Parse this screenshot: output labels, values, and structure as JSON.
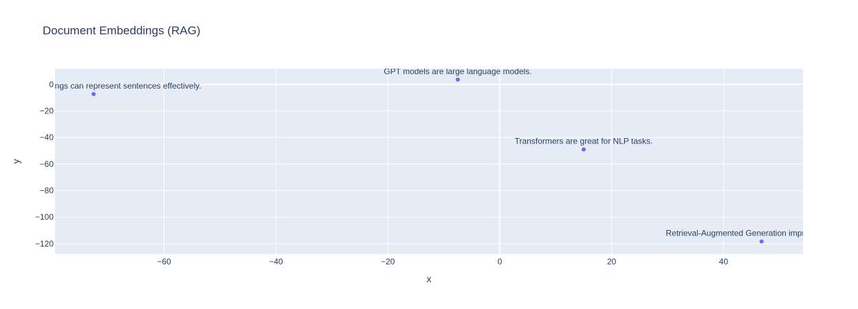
{
  "chart_data": {
    "type": "scatter",
    "title": "Document Embeddings (RAG)",
    "xlabel": "x",
    "ylabel": "y",
    "xlim": [
      -79.5,
      54.2
    ],
    "ylim": [
      -127.8,
      11.8
    ],
    "xticks": [
      -60,
      -40,
      -20,
      0,
      20,
      40
    ],
    "yticks": [
      0,
      -20,
      -40,
      -60,
      -80,
      -100,
      -120
    ],
    "xtick_labels": [
      "−60",
      "−40",
      "−20",
      "0",
      "20",
      "40"
    ],
    "ytick_labels": [
      "0",
      "−20",
      "−40",
      "−60",
      "−80",
      "−100",
      "−120"
    ],
    "grid": true,
    "plot_bg": "#e5ecf6",
    "marker_color": "#636efa",
    "points": [
      {
        "x": -72.6,
        "y": -7.3,
        "label": "Sentence embeddings can represent sentences effectively."
      },
      {
        "x": -7.5,
        "y": 3.6,
        "label": "GPT models are large language models."
      },
      {
        "x": 15.0,
        "y": -49.0,
        "label": "Transformers are great for NLP tasks."
      },
      {
        "x": 46.8,
        "y": -118.3,
        "label": "Retrieval-Augmented Generation improves answers."
      }
    ]
  }
}
